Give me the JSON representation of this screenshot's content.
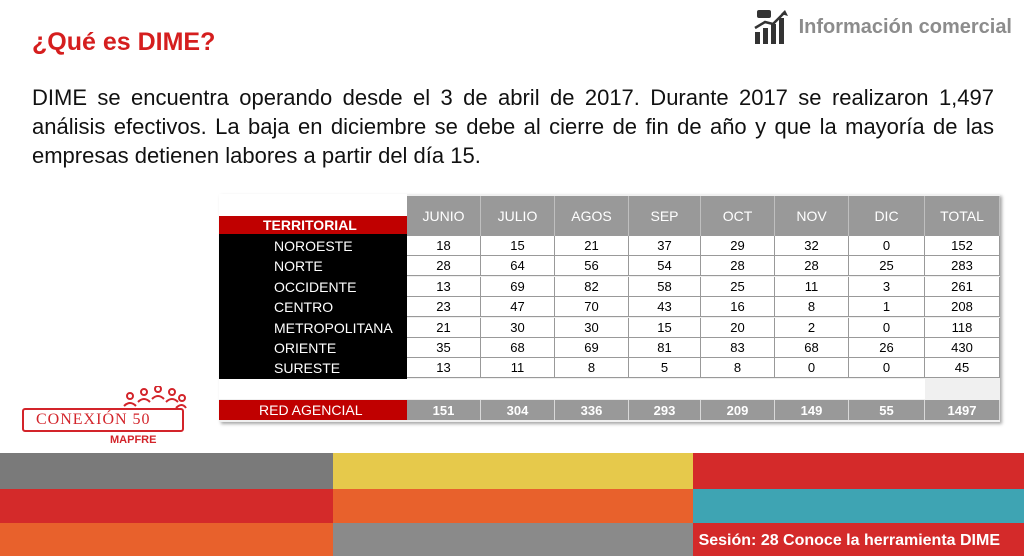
{
  "header": {
    "title": "¿Qué es DIME?",
    "section_label": "Información comercial",
    "section_icon": "handshake-chart-icon"
  },
  "body": {
    "paragraph": "DIME se encuentra operando desde el 3 de abril de 2017. Durante 2017 se realizaron 1,497 análisis efectivos. La baja en diciembre se debe al cierre de fin de año y que la mayoría de las empresas detienen labores a partir del día 15."
  },
  "table": {
    "row_header_label": "TERRITORIAL",
    "columns": [
      "JUNIO",
      "JULIO",
      "AGOS",
      "SEP",
      "OCT",
      "NOV",
      "DIC",
      "TOTAL"
    ],
    "rows": [
      {
        "label": "NOROESTE",
        "values": [
          "18",
          "15",
          "21",
          "37",
          "29",
          "32",
          "0",
          "152"
        ]
      },
      {
        "label": "NORTE",
        "values": [
          "28",
          "64",
          "56",
          "54",
          "28",
          "28",
          "25",
          "283"
        ]
      },
      {
        "label": "OCCIDENTE",
        "values": [
          "13",
          "69",
          "82",
          "58",
          "25",
          "11",
          "3",
          "261"
        ]
      },
      {
        "label": "CENTRO",
        "values": [
          "23",
          "47",
          "70",
          "43",
          "16",
          "8",
          "1",
          "208"
        ]
      },
      {
        "label": "METROPOLITANA",
        "values": [
          "21",
          "30",
          "30",
          "15",
          "20",
          "2",
          "0",
          "118"
        ]
      },
      {
        "label": "ORIENTE",
        "values": [
          "35",
          "68",
          "69",
          "81",
          "83",
          "68",
          "26",
          "430"
        ]
      },
      {
        "label": "SURESTE",
        "values": [
          "13",
          "11",
          "8",
          "5",
          "8",
          "0",
          "0",
          "45"
        ]
      }
    ],
    "total_row": {
      "label": "RED AGENCIAL",
      "values": [
        "151",
        "304",
        "336",
        "293",
        "209",
        "149",
        "55",
        "1497"
      ]
    }
  },
  "logo": {
    "name": "CONEXIÓN 50",
    "brand": "MAPFRE"
  },
  "footer": {
    "session_label": "Sesión: 28 Conoce la herramienta DIME"
  },
  "colors": {
    "accent_red": "#d51e1e",
    "header_gray": "#999999",
    "band_yellow": "#e6c94b",
    "band_orange": "#e8612c",
    "band_teal": "#3ea4b3",
    "band_red": "#d42a2a"
  }
}
